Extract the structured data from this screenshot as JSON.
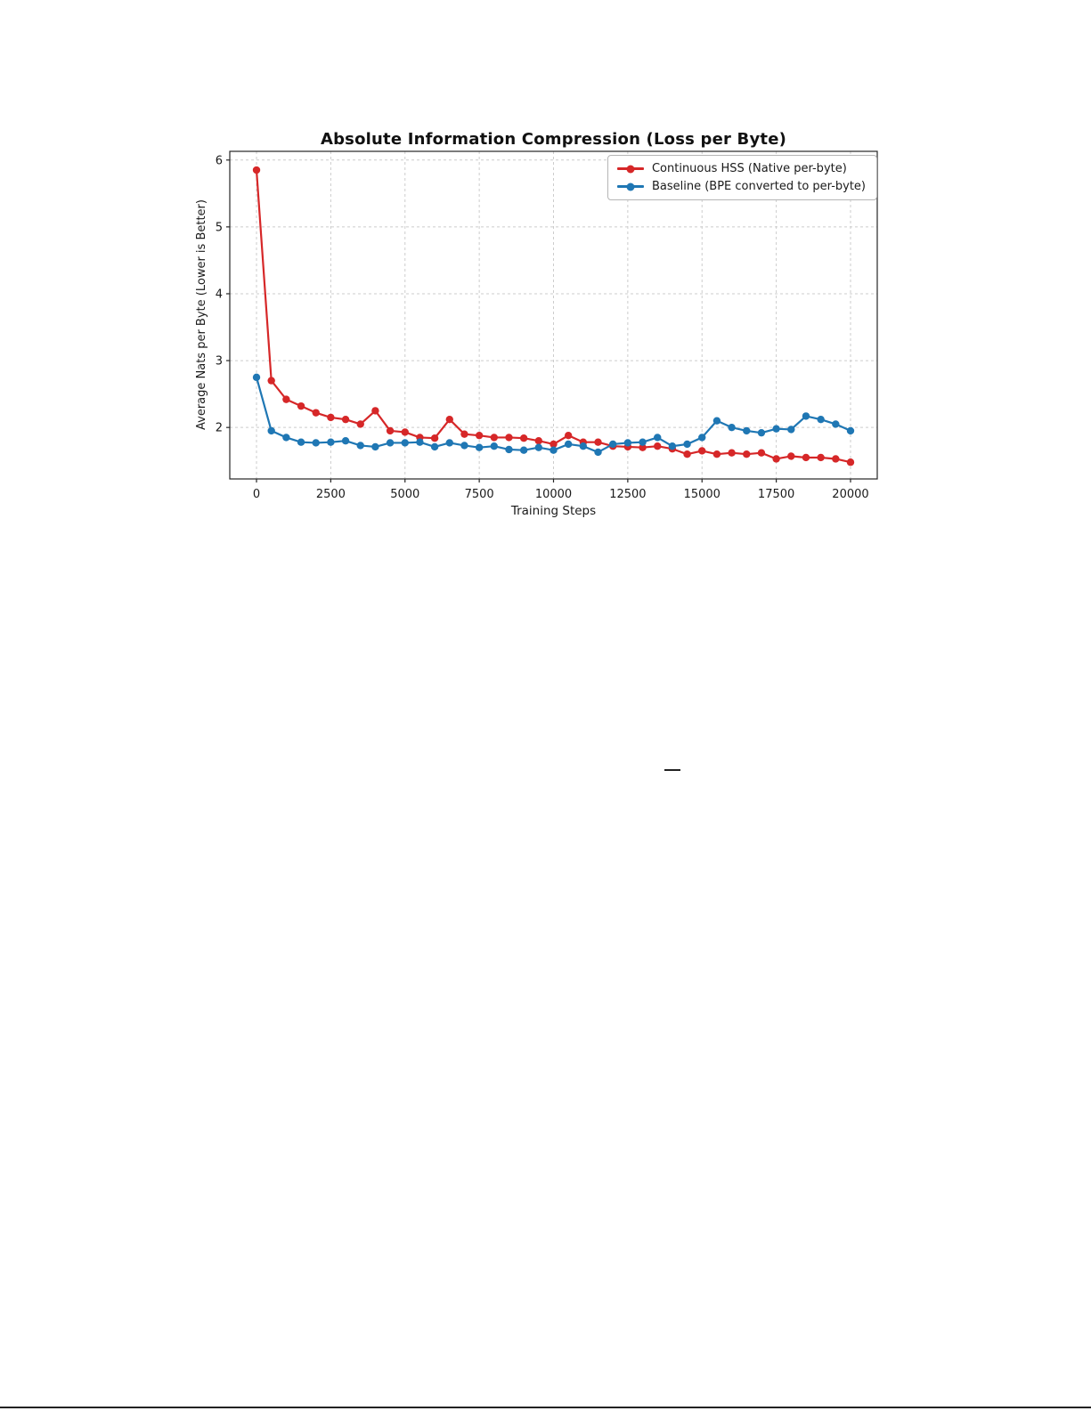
{
  "chart_data": {
    "type": "line",
    "title": "Absolute Information Compression (Loss per Byte)",
    "xlabel": "Training Steps",
    "ylabel": "Average Nats per Byte (Lower is Better)",
    "xlim": [
      -900,
      20900
    ],
    "ylim": [
      1.23,
      6.13
    ],
    "xticks": [
      0,
      2500,
      5000,
      7500,
      10000,
      12500,
      15000,
      17500,
      20000
    ],
    "yticks": [
      2,
      3,
      4,
      5,
      6
    ],
    "grid": true,
    "grid_style": "dashed",
    "legend_position": "upper right",
    "x": [
      0,
      500,
      1000,
      1500,
      2000,
      2500,
      3000,
      3500,
      4000,
      4500,
      5000,
      5500,
      6000,
      6500,
      7000,
      7500,
      8000,
      8500,
      9000,
      9500,
      10000,
      10500,
      11000,
      11500,
      12000,
      12500,
      13000,
      13500,
      14000,
      14500,
      15000,
      15500,
      16000,
      16500,
      17000,
      17500,
      18000,
      18500,
      19000,
      19500,
      20000
    ],
    "series": [
      {
        "name": "Continuous HSS (Native per-byte)",
        "color": "#d62728",
        "values": [
          5.85,
          2.7,
          2.42,
          2.32,
          2.22,
          2.15,
          2.12,
          2.05,
          2.25,
          1.95,
          1.93,
          1.85,
          1.84,
          2.12,
          1.9,
          1.88,
          1.85,
          1.85,
          1.84,
          1.8,
          1.75,
          1.88,
          1.78,
          1.78,
          1.72,
          1.71,
          1.7,
          1.72,
          1.68,
          1.6,
          1.65,
          1.6,
          1.62,
          1.6,
          1.62,
          1.53,
          1.57,
          1.55,
          1.55,
          1.53,
          1.48
        ]
      },
      {
        "name": "Baseline (BPE converted to per-byte)",
        "color": "#1f77b4",
        "values": [
          2.75,
          1.95,
          1.85,
          1.78,
          1.77,
          1.78,
          1.8,
          1.73,
          1.71,
          1.77,
          1.77,
          1.78,
          1.71,
          1.77,
          1.73,
          1.7,
          1.72,
          1.67,
          1.66,
          1.7,
          1.66,
          1.75,
          1.72,
          1.63,
          1.75,
          1.77,
          1.78,
          1.85,
          1.72,
          1.75,
          1.85,
          2.1,
          2.0,
          1.95,
          1.92,
          1.98,
          1.97,
          2.17,
          2.12,
          2.05,
          1.95
        ]
      }
    ]
  },
  "page": {
    "dash_rule": "—"
  }
}
